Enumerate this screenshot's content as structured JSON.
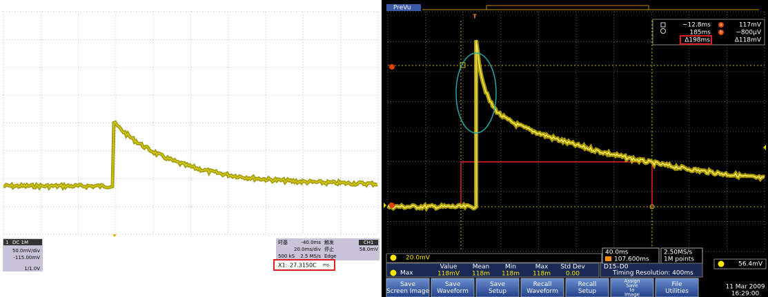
{
  "left_scope": {
    "channel": {
      "badge": "1",
      "coupling": "DC 1M",
      "scale": "50.0mV/div",
      "offset": "-115.00mV",
      "probe": "1/1.0V"
    },
    "status": {
      "timebase_label": "时基",
      "timebase": "-40.0ms",
      "trigger_label": "触发",
      "trigger_source": "CH1",
      "scale": "20.0ms/div",
      "stop": "停止",
      "level": "58.0mV",
      "record": "500 kS",
      "rate": "2.5 MS/s",
      "mode": "Edge"
    },
    "cursor": {
      "label": "X1:",
      "value": "27.3150C",
      "unit": "ms"
    }
  },
  "right_scope": {
    "preview": "PreVu",
    "trigger_marker": "T",
    "cursors": {
      "a_time": "−12.8ms",
      "a_label": "a",
      "a_level": "117mV",
      "b_time": "185ms",
      "b_label": "b",
      "b_level": "−800µV",
      "delta_time": "Δ198ms",
      "delta_level": "Δ118mV"
    },
    "channel_scale": "20.0mV",
    "horizontal": {
      "scale": "40.0ms",
      "position": "107.600ms"
    },
    "acquisition": {
      "rate": "2.50MS/s",
      "points": "1M points"
    },
    "digital": {
      "channels": "D15–D0",
      "resolution": "Timing Resolution: 400ms"
    },
    "trigger_level": "56.4mV",
    "measurement": {
      "headers": [
        "Value",
        "Mean",
        "Min",
        "Max",
        "Std Dev"
      ],
      "name": "Max",
      "values": [
        "118mV",
        "118m",
        "118m",
        "118m",
        "0.00"
      ]
    },
    "buttons": [
      [
        "Save",
        "Screen Image"
      ],
      [
        "Save",
        "Waveform"
      ],
      [
        "Save",
        "Setup"
      ],
      [
        "Recall",
        "Waveform"
      ],
      [
        "Recall",
        "Setup"
      ],
      [
        "Assign",
        "Save",
        "to",
        "Image"
      ],
      [
        "File",
        "Utilities"
      ]
    ],
    "date": "11 Mar 2009",
    "time": "16:29:00"
  }
}
